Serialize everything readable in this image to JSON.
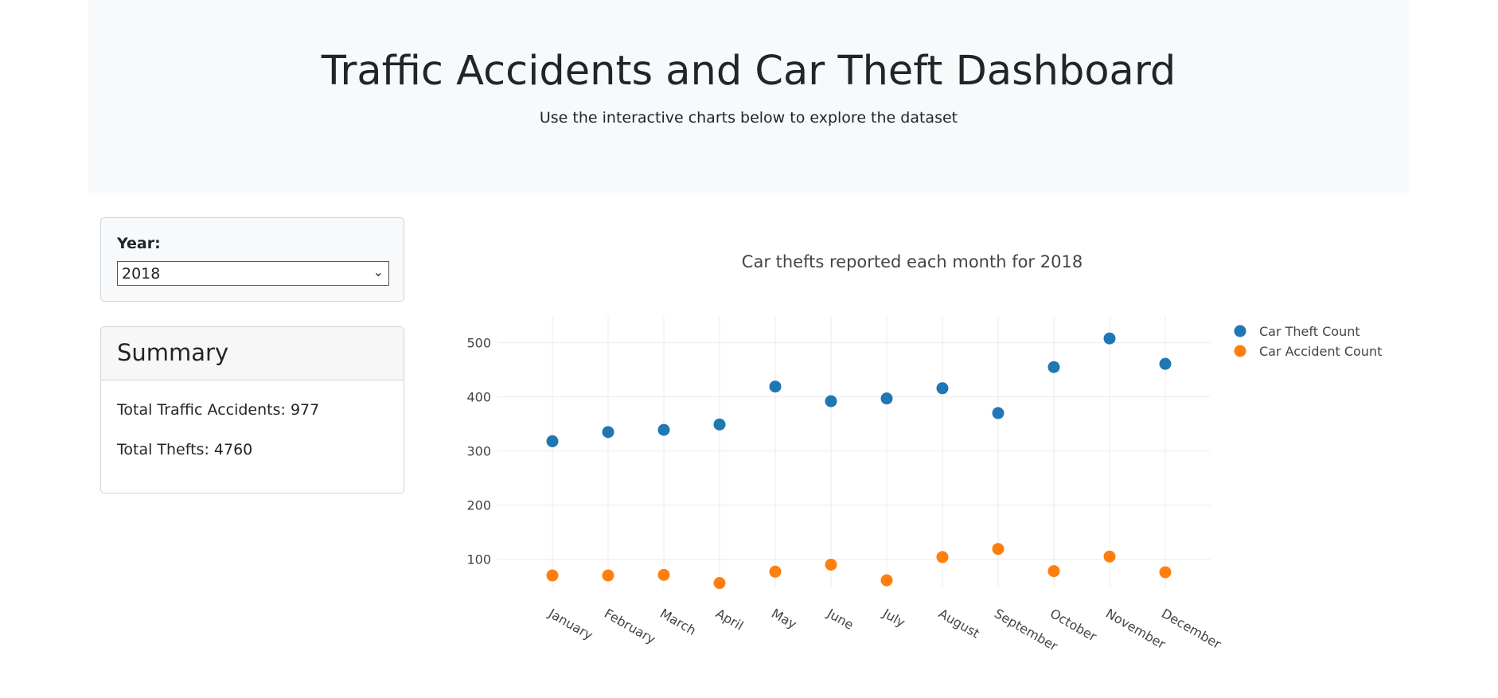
{
  "header": {
    "title": "Traffic Accidents and Car Theft Dashboard",
    "subtitle": "Use the interactive charts below to explore the dataset"
  },
  "controls": {
    "year_label": "Year:",
    "year_selected": "2018"
  },
  "summary": {
    "title": "Summary",
    "total_accidents": "Total Traffic Accidents: 977",
    "total_thefts": "Total Thefts: 4760"
  },
  "chart_data": {
    "type": "scatter",
    "title": "Car thefts reported each month for 2018",
    "categories": [
      "January",
      "February",
      "March",
      "April",
      "May",
      "June",
      "July",
      "August",
      "September",
      "October",
      "November",
      "December"
    ],
    "series": [
      {
        "name": "Car Theft Count",
        "color": "#1f77b4",
        "values": [
          318,
          335,
          339,
          349,
          419,
          392,
          397,
          416,
          370,
          455,
          508,
          461
        ]
      },
      {
        "name": "Car Accident Count",
        "color": "#ff7f0e",
        "values": [
          70,
          70,
          71,
          56,
          77,
          90,
          61,
          104,
          119,
          78,
          105,
          76
        ]
      }
    ],
    "yticks": [
      100,
      200,
      300,
      400,
      500
    ],
    "ylim": [
      48,
      548
    ],
    "grid": true,
    "legend_position": "top-right"
  }
}
